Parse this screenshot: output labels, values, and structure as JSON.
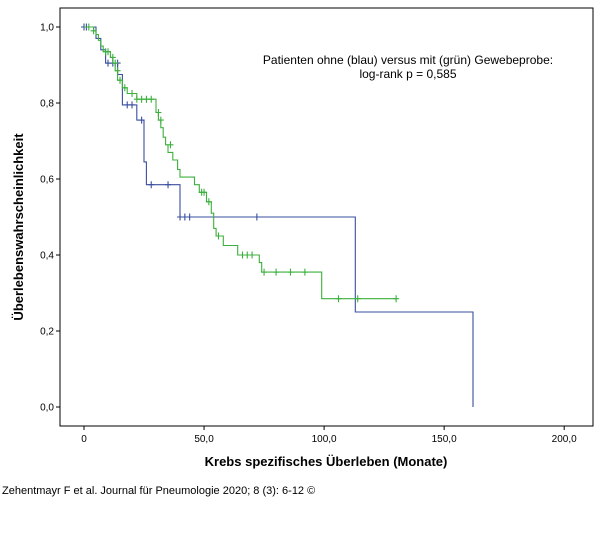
{
  "chart_data": {
    "type": "line",
    "subtype": "kaplan-meier",
    "xlabel": "Krebs spezifisches Überleben (Monate)",
    "ylabel": "Überlebenswahrscheinlichkeit",
    "xlim": [
      -10,
      212
    ],
    "ylim": [
      -0.05,
      1.05
    ],
    "xticks": [
      0,
      50,
      100,
      150,
      200
    ],
    "xtick_labels": [
      "0",
      "50,0",
      "100,0",
      "150,0",
      "200,0"
    ],
    "yticks": [
      0,
      0.2,
      0.4,
      0.6,
      0.8,
      1.0
    ],
    "ytick_labels": [
      "0,0",
      "0,2",
      "0,4",
      "0,6",
      "0,8",
      "1,0"
    ],
    "annotation": [
      "Patienten ohne (blau) versus mit (grün) Gewebeprobe:",
      "log-rank p = 0,585"
    ],
    "series": [
      {
        "name": "ohne Gewebeprobe (blau)",
        "color": "#3a4fa0",
        "steps": [
          [
            0,
            1.0
          ],
          [
            5,
            1.0
          ],
          [
            5,
            0.97
          ],
          [
            7,
            0.97
          ],
          [
            7,
            0.94
          ],
          [
            9,
            0.94
          ],
          [
            9,
            0.905
          ],
          [
            14,
            0.905
          ],
          [
            14,
            0.875
          ],
          [
            16,
            0.875
          ],
          [
            16,
            0.795
          ],
          [
            22,
            0.795
          ],
          [
            22,
            0.755
          ],
          [
            25,
            0.755
          ],
          [
            25,
            0.645
          ],
          [
            26,
            0.645
          ],
          [
            26,
            0.585
          ],
          [
            40,
            0.585
          ],
          [
            40,
            0.5
          ],
          [
            113,
            0.5
          ],
          [
            113,
            0.25
          ],
          [
            162,
            0.25
          ],
          [
            162,
            0.0
          ]
        ],
        "censored": [
          [
            0,
            1.0
          ],
          [
            1,
            1.0
          ],
          [
            10,
            0.905
          ],
          [
            12,
            0.905
          ],
          [
            14,
            0.905
          ],
          [
            18,
            0.795
          ],
          [
            20,
            0.795
          ],
          [
            24,
            0.755
          ],
          [
            28,
            0.585
          ],
          [
            35,
            0.585
          ],
          [
            40,
            0.5
          ],
          [
            42,
            0.5
          ],
          [
            44,
            0.5
          ],
          [
            72,
            0.5
          ]
        ]
      },
      {
        "name": "mit Gewebeprobe (grün)",
        "color": "#3cb03c",
        "steps": [
          [
            0,
            1.0
          ],
          [
            4,
            1.0
          ],
          [
            4,
            0.99
          ],
          [
            5,
            0.99
          ],
          [
            5,
            0.98
          ],
          [
            6,
            0.98
          ],
          [
            6,
            0.965
          ],
          [
            7,
            0.965
          ],
          [
            7,
            0.95
          ],
          [
            8,
            0.95
          ],
          [
            8,
            0.935
          ],
          [
            11,
            0.935
          ],
          [
            11,
            0.92
          ],
          [
            12,
            0.92
          ],
          [
            12,
            0.905
          ],
          [
            13,
            0.905
          ],
          [
            13,
            0.885
          ],
          [
            14,
            0.885
          ],
          [
            14,
            0.86
          ],
          [
            16,
            0.86
          ],
          [
            16,
            0.84
          ],
          [
            18,
            0.84
          ],
          [
            18,
            0.825
          ],
          [
            22,
            0.825
          ],
          [
            22,
            0.81
          ],
          [
            30,
            0.81
          ],
          [
            30,
            0.775
          ],
          [
            31,
            0.775
          ],
          [
            31,
            0.755
          ],
          [
            32,
            0.755
          ],
          [
            32,
            0.735
          ],
          [
            33,
            0.735
          ],
          [
            33,
            0.71
          ],
          [
            34,
            0.71
          ],
          [
            34,
            0.69
          ],
          [
            35,
            0.69
          ],
          [
            35,
            0.67
          ],
          [
            37,
            0.67
          ],
          [
            37,
            0.65
          ],
          [
            39,
            0.65
          ],
          [
            39,
            0.625
          ],
          [
            40,
            0.625
          ],
          [
            40,
            0.605
          ],
          [
            46,
            0.605
          ],
          [
            46,
            0.585
          ],
          [
            48,
            0.585
          ],
          [
            48,
            0.565
          ],
          [
            51,
            0.565
          ],
          [
            51,
            0.54
          ],
          [
            53,
            0.54
          ],
          [
            53,
            0.51
          ],
          [
            54,
            0.51
          ],
          [
            54,
            0.47
          ],
          [
            55,
            0.47
          ],
          [
            55,
            0.45
          ],
          [
            58,
            0.45
          ],
          [
            58,
            0.425
          ],
          [
            64,
            0.425
          ],
          [
            64,
            0.4
          ],
          [
            73,
            0.4
          ],
          [
            73,
            0.38
          ],
          [
            74,
            0.38
          ],
          [
            74,
            0.355
          ],
          [
            99,
            0.355
          ],
          [
            99,
            0.285
          ],
          [
            130,
            0.285
          ]
        ],
        "censored": [
          [
            2,
            1.0
          ],
          [
            4,
            0.99
          ],
          [
            9,
            0.935
          ],
          [
            10,
            0.935
          ],
          [
            12,
            0.92
          ],
          [
            13,
            0.905
          ],
          [
            14,
            0.885
          ],
          [
            15,
            0.86
          ],
          [
            17,
            0.84
          ],
          [
            20,
            0.825
          ],
          [
            22,
            0.81
          ],
          [
            24,
            0.81
          ],
          [
            26,
            0.81
          ],
          [
            28,
            0.81
          ],
          [
            31,
            0.775
          ],
          [
            32,
            0.755
          ],
          [
            36,
            0.69
          ],
          [
            49,
            0.565
          ],
          [
            50,
            0.565
          ],
          [
            52,
            0.54
          ],
          [
            56,
            0.45
          ],
          [
            66,
            0.4
          ],
          [
            68,
            0.4
          ],
          [
            70,
            0.4
          ],
          [
            75,
            0.355
          ],
          [
            80,
            0.355
          ],
          [
            86,
            0.355
          ],
          [
            92,
            0.355
          ],
          [
            106,
            0.285
          ],
          [
            114,
            0.285
          ],
          [
            130,
            0.285
          ]
        ]
      }
    ]
  },
  "citation": "Zehentmayr F et al. Journal für Pneumologie 2020; 8 (3): 6-12 ©"
}
